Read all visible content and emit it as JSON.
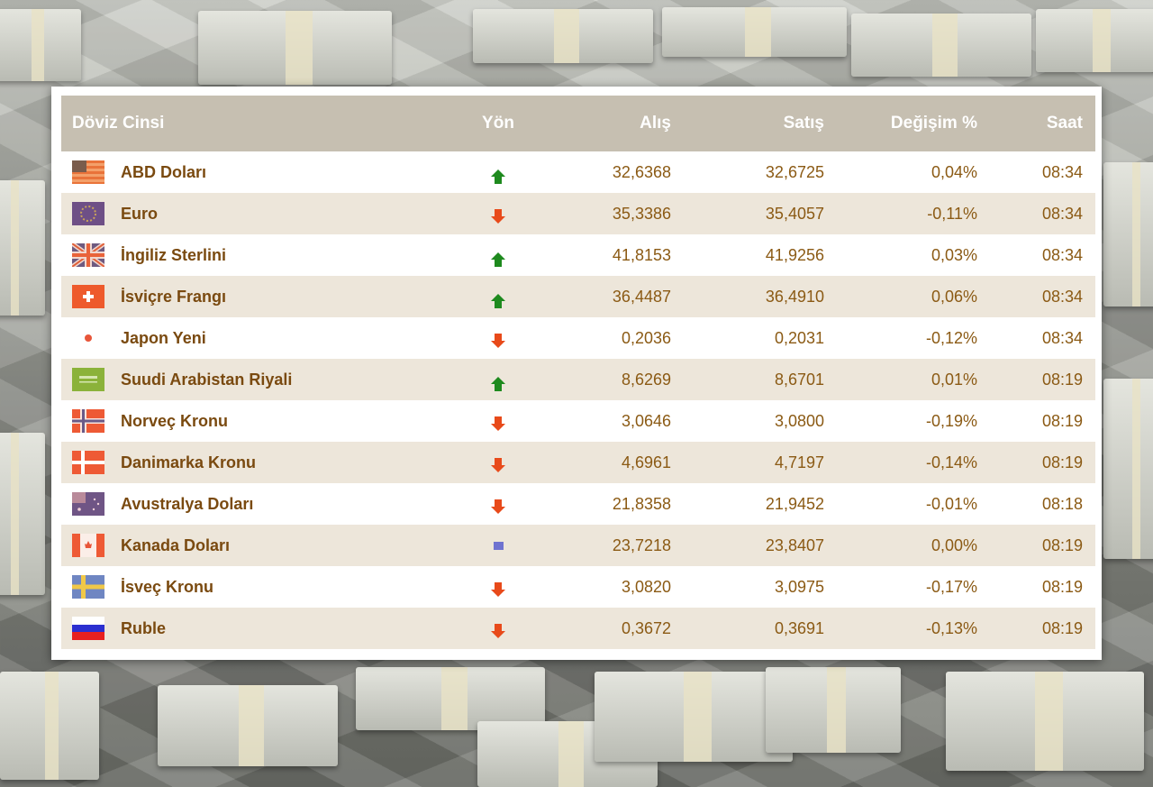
{
  "table": {
    "headers": {
      "currency": "Döviz Cinsi",
      "direction": "Yön",
      "buy": "Alış",
      "sell": "Satış",
      "change": "Değişim %",
      "time": "Saat"
    },
    "rows": [
      {
        "name": "ABD Doları",
        "flag": "us-flag-icon",
        "direction": "up",
        "buy": "32,6368",
        "sell": "32,6725",
        "change": "0,04%",
        "time": "08:34"
      },
      {
        "name": "Euro",
        "flag": "eu-flag-icon",
        "direction": "down",
        "buy": "35,3386",
        "sell": "35,4057",
        "change": "-0,11%",
        "time": "08:34"
      },
      {
        "name": "İngiliz Sterlini",
        "flag": "uk-flag-icon",
        "direction": "up",
        "buy": "41,8153",
        "sell": "41,9256",
        "change": "0,03%",
        "time": "08:34"
      },
      {
        "name": "İsviçre Frangı",
        "flag": "ch-flag-icon",
        "direction": "up",
        "buy": "36,4487",
        "sell": "36,4910",
        "change": "0,06%",
        "time": "08:34"
      },
      {
        "name": "Japon Yeni",
        "flag": "jp-flag-icon",
        "direction": "down",
        "buy": "0,2036",
        "sell": "0,2031",
        "change": "-0,12%",
        "time": "08:34"
      },
      {
        "name": "Suudi Arabistan Riyali",
        "flag": "sa-flag-icon",
        "direction": "up",
        "buy": "8,6269",
        "sell": "8,6701",
        "change": "0,01%",
        "time": "08:19"
      },
      {
        "name": "Norveç Kronu",
        "flag": "no-flag-icon",
        "direction": "down",
        "buy": "3,0646",
        "sell": "3,0800",
        "change": "-0,19%",
        "time": "08:19"
      },
      {
        "name": "Danimarka Kronu",
        "flag": "dk-flag-icon",
        "direction": "down",
        "buy": "4,6961",
        "sell": "4,7197",
        "change": "-0,14%",
        "time": "08:19"
      },
      {
        "name": "Avustralya Doları",
        "flag": "au-flag-icon",
        "direction": "down",
        "buy": "21,8358",
        "sell": "21,9452",
        "change": "-0,01%",
        "time": "08:18"
      },
      {
        "name": "Kanada Doları",
        "flag": "ca-flag-icon",
        "direction": "flat",
        "buy": "23,7218",
        "sell": "23,8407",
        "change": "0,00%",
        "time": "08:19"
      },
      {
        "name": "İsveç Kronu",
        "flag": "se-flag-icon",
        "direction": "down",
        "buy": "3,0820",
        "sell": "3,0975",
        "change": "-0,17%",
        "time": "08:19"
      },
      {
        "name": "Ruble",
        "flag": "ru-flag-icon",
        "direction": "down",
        "buy": "0,3672",
        "sell": "0,3691",
        "change": "-0,13%",
        "time": "08:19"
      }
    ]
  },
  "colors": {
    "header_bg": "#c6bfb1",
    "row_alt_bg": "#ede6da",
    "text": "#8b5a14",
    "up": "#1e8a1e",
    "down": "#e84a1a",
    "flat": "#6f73d0"
  }
}
